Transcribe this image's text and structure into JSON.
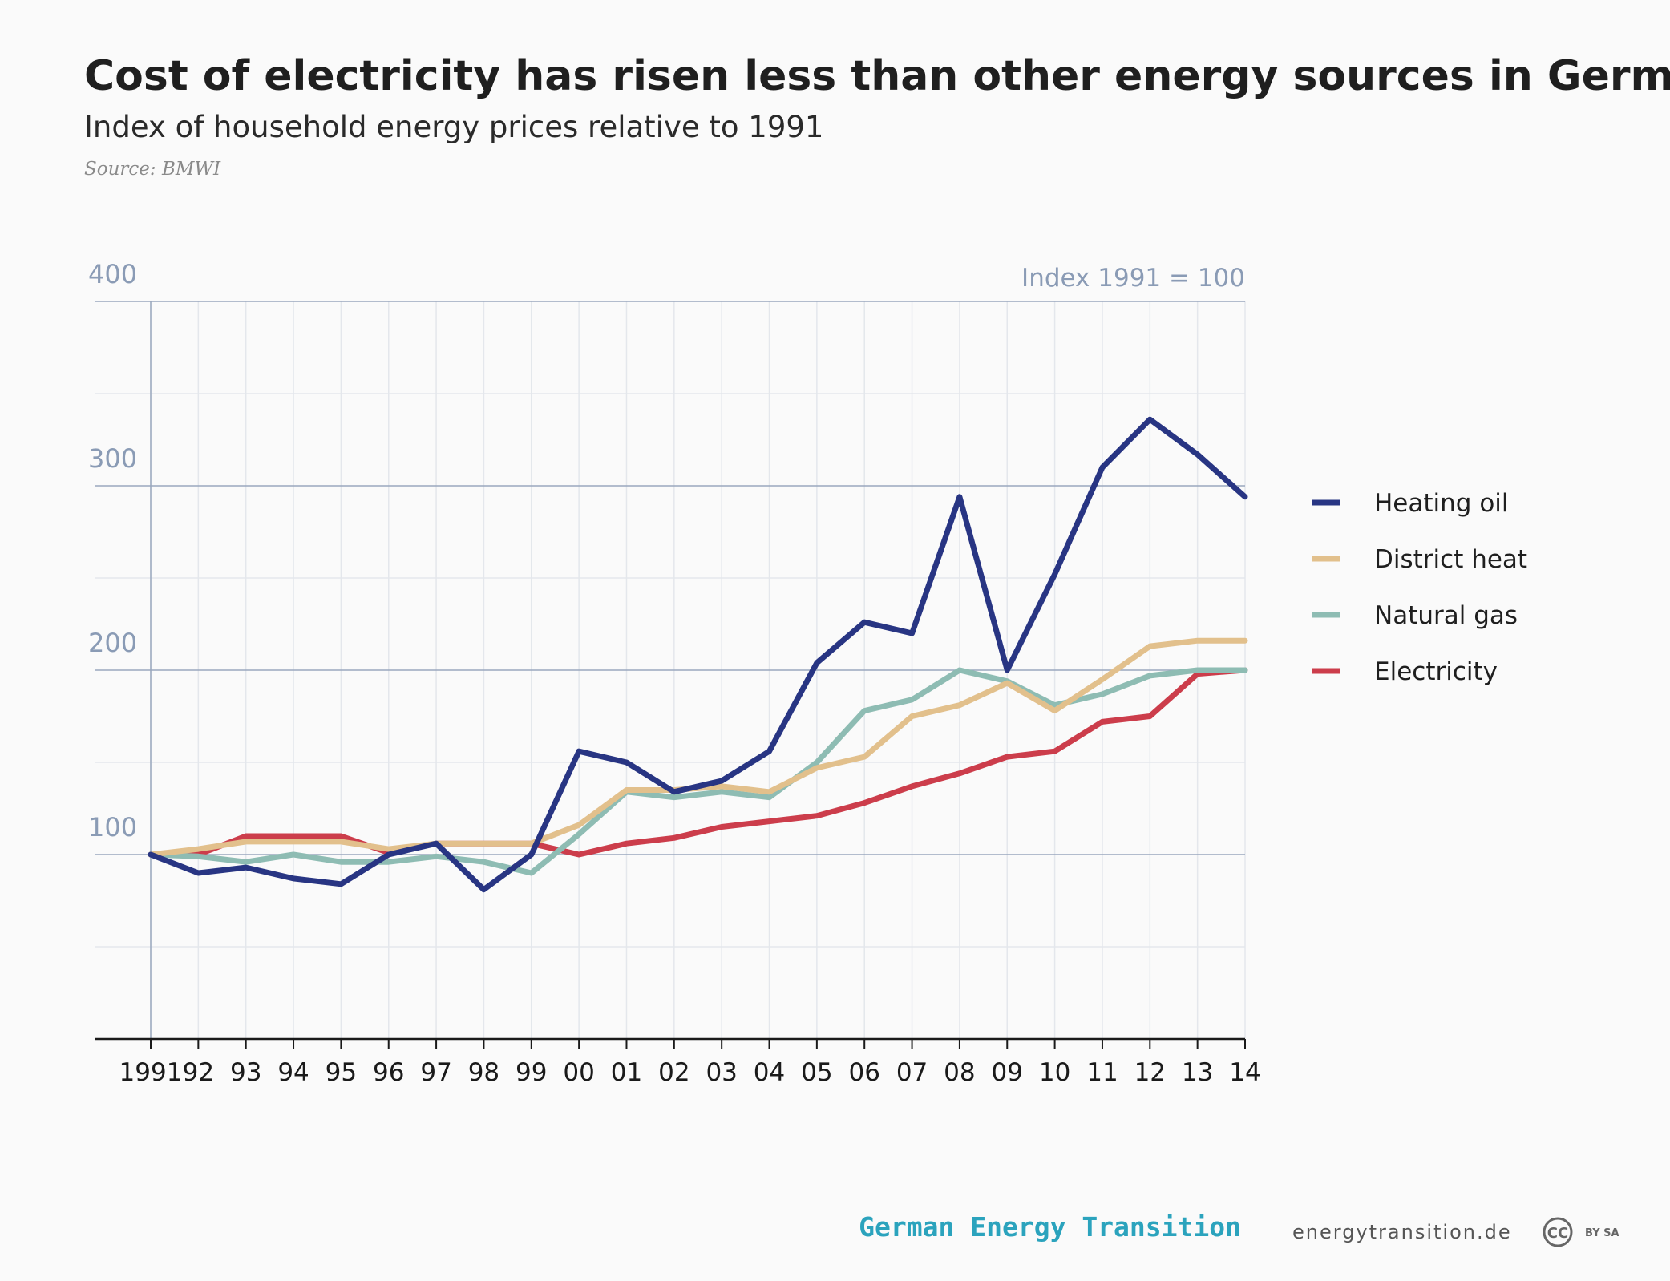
{
  "chart_data": {
    "type": "line",
    "title": "Cost of electricity has risen less than other energy sources in Germany",
    "subtitle": "Index of household energy prices relative to 1991",
    "source": "Source: BMWI",
    "unit_label": "Index 1991 = 100",
    "x": [
      "1991",
      "92",
      "93",
      "94",
      "95",
      "96",
      "97",
      "98",
      "99",
      "00",
      "01",
      "02",
      "03",
      "04",
      "05",
      "06",
      "07",
      "08",
      "09",
      "10",
      "11",
      "12",
      "13",
      "14"
    ],
    "ylim": [
      0,
      400
    ],
    "yticks": [
      100,
      200,
      300,
      400
    ],
    "grid": true,
    "legend_position": "right",
    "series": [
      {
        "name": "Heating oil",
        "color": "#283583",
        "values": [
          100,
          90,
          93,
          87,
          84,
          100,
          106,
          81,
          100,
          156,
          150,
          134,
          140,
          156,
          204,
          226,
          220,
          294,
          200,
          252,
          310,
          336,
          317,
          294
        ]
      },
      {
        "name": "District heat",
        "color": "#e2c08c",
        "values": [
          100,
          103,
          107,
          107,
          107,
          103,
          106,
          106,
          106,
          116,
          135,
          135,
          137,
          134,
          147,
          153,
          175,
          181,
          193,
          178,
          195,
          213,
          216,
          216
        ]
      },
      {
        "name": "Natural gas",
        "color": "#8ebcb3",
        "values": [
          100,
          99,
          96,
          100,
          96,
          96,
          99,
          96,
          90,
          111,
          134,
          131,
          134,
          131,
          150,
          178,
          184,
          200,
          194,
          181,
          187,
          197,
          200,
          200
        ]
      },
      {
        "name": "Electricity",
        "color": "#cc3d4b",
        "values": [
          100,
          100,
          110,
          110,
          110,
          101,
          106,
          106,
          106,
          100,
          106,
          109,
          115,
          118,
          121,
          128,
          137,
          144,
          153,
          156,
          172,
          175,
          198,
          200
        ]
      }
    ]
  },
  "footer": {
    "brand": "German Energy Transition",
    "site": "energytransition.de",
    "license_badge": "CC",
    "license_terms": "BY SA"
  }
}
